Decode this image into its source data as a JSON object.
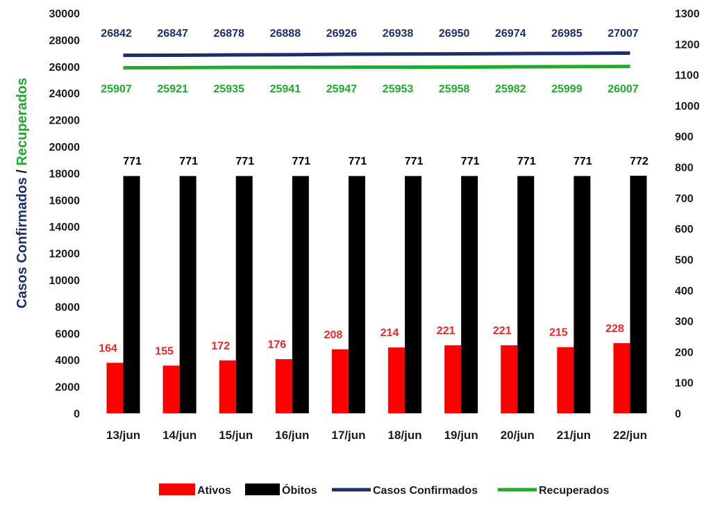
{
  "chart_data": {
    "type": "bar",
    "categories": [
      "13/jun",
      "14/jun",
      "15/jun",
      "16/jun",
      "17/jun",
      "18/jun",
      "19/jun",
      "20/jun",
      "21/jun",
      "22/jun"
    ],
    "series": [
      {
        "name": "Ativos",
        "kind": "bar",
        "axis": "right",
        "color": "#ff0000",
        "label_color": "#e8262b",
        "values": [
          164,
          155,
          172,
          176,
          208,
          214,
          221,
          221,
          215,
          228
        ]
      },
      {
        "name": "Óbitos",
        "kind": "bar",
        "axis": "right",
        "color": "#000000",
        "label_color": "#000000",
        "values": [
          771,
          771,
          771,
          771,
          771,
          771,
          771,
          771,
          771,
          772
        ]
      },
      {
        "name": "Casos Confirmados",
        "kind": "line",
        "axis": "left",
        "color": "#1b2f6b",
        "label_color": "#1b2f6b",
        "values": [
          26842,
          26847,
          26878,
          26888,
          26926,
          26938,
          26950,
          26974,
          26985,
          27007
        ]
      },
      {
        "name": "Recuperados",
        "kind": "line",
        "axis": "left",
        "color": "#1faa2e",
        "label_color": "#1faa2e",
        "values": [
          25907,
          25921,
          25935,
          25941,
          25947,
          25953,
          25958,
          25982,
          25999,
          26007
        ]
      }
    ],
    "ylabel_parts": [
      {
        "text": "Casos Confirmados",
        "color": "#1b2f6b"
      },
      {
        "text": " / ",
        "color": "#1a1a1a"
      },
      {
        "text": "Recuperados",
        "color": "#1faa2e"
      }
    ],
    "ylim": [
      0,
      30000
    ],
    "y_ticks": [
      "0",
      "2000",
      "4000",
      "6000",
      "8000",
      "10000",
      "12000",
      "14000",
      "16000",
      "18000",
      "20000",
      "22000",
      "24000",
      "26000",
      "28000",
      "30000"
    ],
    "y2lim": [
      0,
      1300
    ],
    "y2_ticks": [
      "0",
      "100",
      "200",
      "300",
      "400",
      "500",
      "600",
      "700",
      "800",
      "900",
      "1000",
      "1100",
      "1200",
      "1300"
    ],
    "grid": false,
    "legend_position": "bottom"
  }
}
